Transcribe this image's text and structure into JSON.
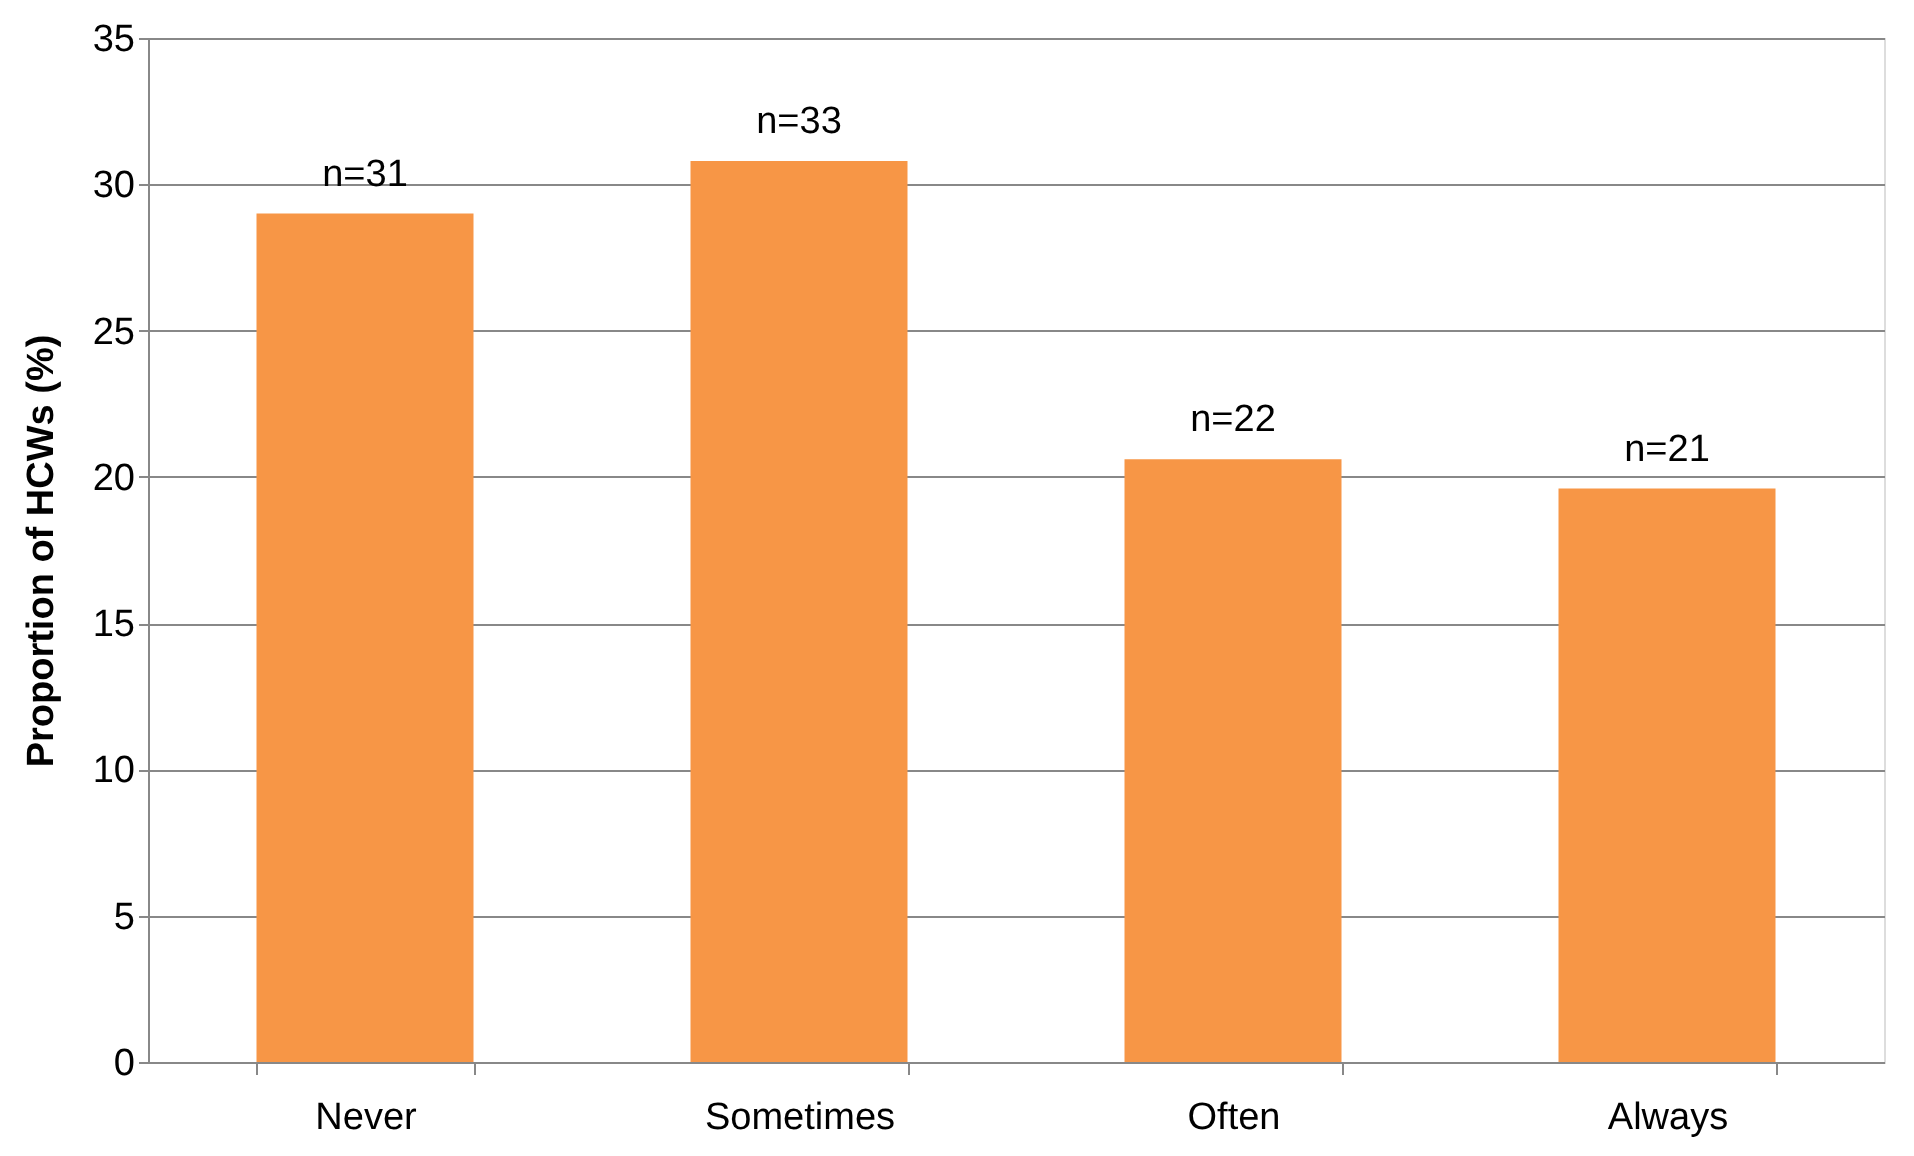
{
  "chart_data": {
    "type": "bar",
    "ylabel": "Proportion of HCWs (%)",
    "categories": [
      "Never",
      "Sometimes",
      "Often",
      "Always"
    ],
    "values": [
      29.0,
      30.8,
      20.6,
      19.6
    ],
    "annotations": [
      {
        "text": "n=31",
        "x": "Never",
        "y": 29.0
      },
      {
        "text": "n=33",
        "x": "Sometimes",
        "y": 30.8
      },
      {
        "text": "n=22",
        "x": "Often",
        "y": 20.6
      },
      {
        "text": "n=21",
        "x": "Always",
        "y": 19.6
      }
    ],
    "color": "#f79646",
    "ylim": [
      0,
      35
    ],
    "yticks": [
      0,
      5,
      10,
      15,
      20,
      25,
      30,
      35
    ],
    "grid": "y"
  }
}
